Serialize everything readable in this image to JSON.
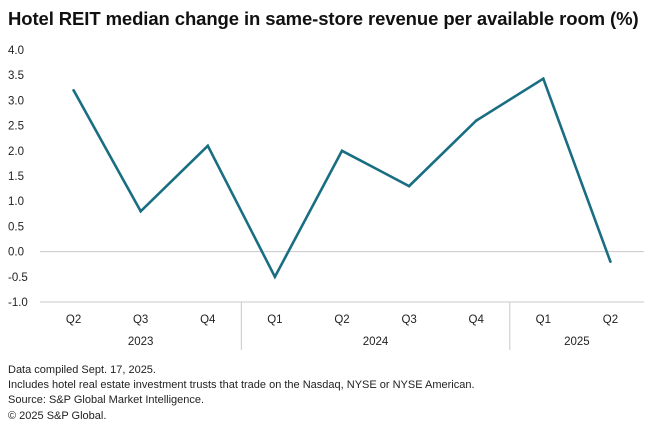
{
  "chart_data": {
    "type": "line",
    "title": "Hotel REIT median change in same-store revenue per available room (%)",
    "xlabel": "",
    "ylabel": "",
    "ylim": [
      -1.0,
      4.0
    ],
    "yticks": [
      "4.0",
      "3.5",
      "3.0",
      "2.5",
      "2.0",
      "1.5",
      "1.0",
      "0.5",
      "0.0",
      "-0.5",
      "-1.0"
    ],
    "yticks_values": [
      4.0,
      3.5,
      3.0,
      2.5,
      2.0,
      1.5,
      1.0,
      0.5,
      0.0,
      -0.5,
      -1.0
    ],
    "categories": [
      "Q2",
      "Q3",
      "Q4",
      "Q1",
      "Q2",
      "Q3",
      "Q4",
      "Q1",
      "Q2"
    ],
    "groups": [
      {
        "label": "2023",
        "count": 3
      },
      {
        "label": "2024",
        "count": 4
      },
      {
        "label": "2025",
        "count": 2
      }
    ],
    "series": [
      {
        "name": "Median change",
        "color": "#1a6e82",
        "values": [
          3.2,
          0.8,
          2.1,
          -0.5,
          2.0,
          1.3,
          2.6,
          3.43,
          -0.2
        ]
      }
    ],
    "grid": false,
    "legend": "none"
  },
  "notes": [
    "Data compiled Sept. 17, 2025.",
    "Includes hotel real estate investment trusts that trade on the Nasdaq, NYSE or NYSE American.",
    "Source: S&P Global Market Intelligence.",
    "© 2025 S&P Global."
  ],
  "colors": {
    "line": "#1a6e82",
    "axis": "#c8c8c8"
  }
}
